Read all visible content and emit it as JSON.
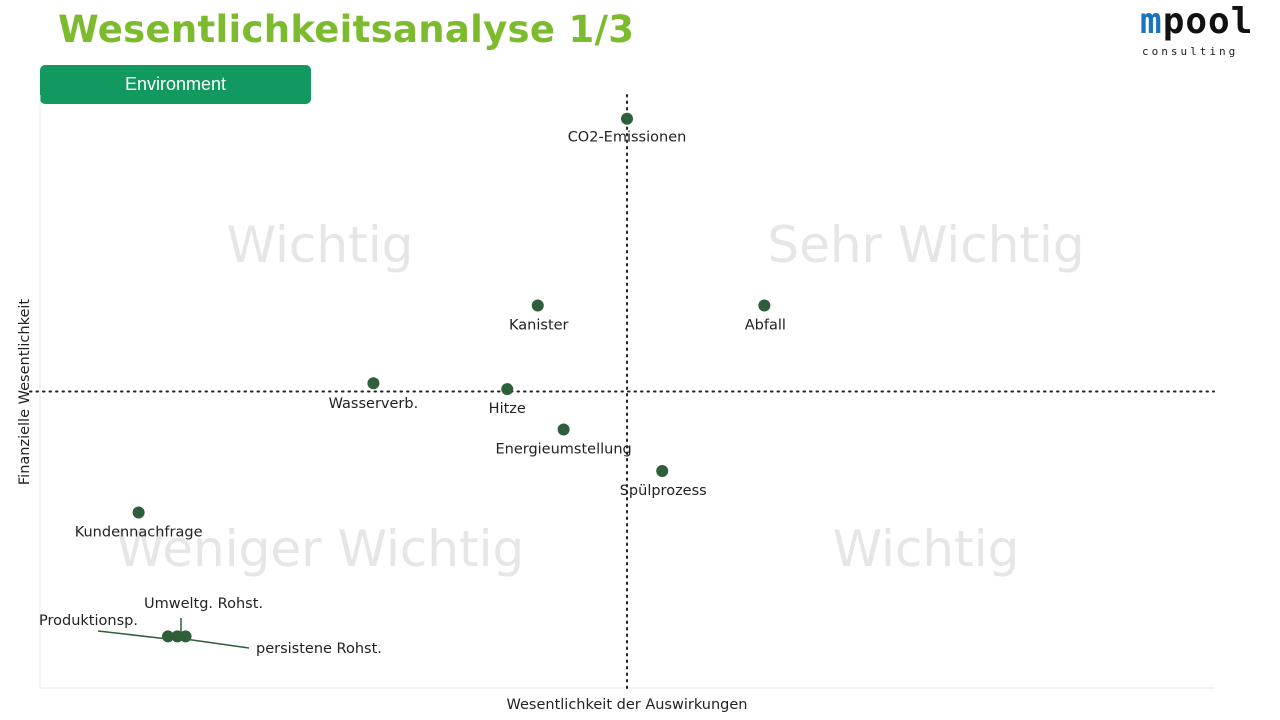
{
  "header": {
    "title": "Wesentlichkeitsanalyse 1/3",
    "logo_main": "mpool",
    "logo_m": "m",
    "logo_rest": "pool",
    "logo_sub": "consulting"
  },
  "category_label": "Environment",
  "colors": {
    "title": "#7dbb2e",
    "pill": "#129960",
    "point": "#2e5e3a",
    "quadrant_text": "#e6e6e6",
    "logo_accent": "#1b75bb"
  },
  "chart_data": {
    "type": "scatter",
    "xlabel": "Wesentlichkeit der Auswirkungen",
    "ylabel": "Finanzielle Wesentlichkeit",
    "xlim": [
      0,
      10
    ],
    "ylim": [
      0,
      10
    ],
    "midlines": {
      "x": 5,
      "y": 5
    },
    "grid": false,
    "quadrants": {
      "top_left": "Wichtig",
      "top_right": "Sehr Wichtig",
      "bottom_left": "Weniger Wichtig",
      "bottom_right": "Wichtig"
    },
    "points": [
      {
        "label": "CO2-Emissionen",
        "x": 5.0,
        "y": 9.6
      },
      {
        "label": "Kanister",
        "x": 4.24,
        "y": 6.45
      },
      {
        "label": "Abfall",
        "x": 6.17,
        "y": 6.45
      },
      {
        "label": "Wasserverb.",
        "x": 2.84,
        "y": 5.14
      },
      {
        "label": "Hitze",
        "x": 3.98,
        "y": 5.04
      },
      {
        "label": "Energieumstellung",
        "x": 4.46,
        "y": 4.36
      },
      {
        "label": "Spülprozess",
        "x": 5.3,
        "y": 3.66
      },
      {
        "label": "Kundennachfrage",
        "x": 0.84,
        "y": 2.96
      },
      {
        "label": "Produktionsp.",
        "x": 1.09,
        "y": 0.87
      },
      {
        "label": "Umweltg. Rohst.",
        "x": 1.17,
        "y": 0.87
      },
      {
        "label": "persistene Rohst.",
        "x": 1.24,
        "y": 0.87
      }
    ]
  }
}
